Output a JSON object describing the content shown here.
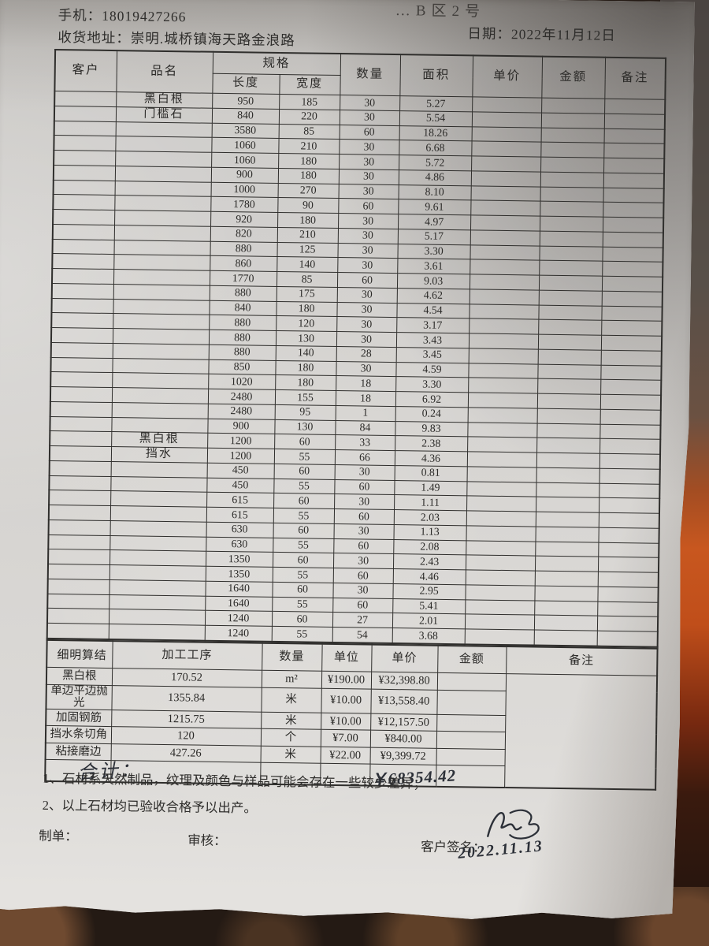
{
  "colors": {
    "backdrop_dark": "#241a14",
    "backdrop_orange": "#c8571f",
    "paper": "#d2d0cd",
    "ink": "#2e2d2b",
    "handwriting": "#2c3038"
  },
  "header": {
    "top_partial": "…B区2号",
    "phone": "手机：18019427266",
    "address": "收货地址：崇明.城桥镇海天路金浪路",
    "date": "日期：2022年11月12日"
  },
  "table": {
    "headers": {
      "customer": "客户",
      "product": "品名",
      "spec": "规格",
      "length": "长度",
      "width": "宽度",
      "qty": "数量",
      "area": "面积",
      "unit_price": "单价",
      "amount": "金额",
      "remark": "备注"
    },
    "product_labels": {
      "0": "黑白根",
      "1": "门槛石",
      "23": "黑白根",
      "24": "挡水"
    },
    "rows": [
      [
        "950",
        "185",
        "30",
        "5.27"
      ],
      [
        "840",
        "220",
        "30",
        "5.54"
      ],
      [
        "3580",
        "85",
        "60",
        "18.26"
      ],
      [
        "1060",
        "210",
        "30",
        "6.68"
      ],
      [
        "1060",
        "180",
        "30",
        "5.72"
      ],
      [
        "900",
        "180",
        "30",
        "4.86"
      ],
      [
        "1000",
        "270",
        "30",
        "8.10"
      ],
      [
        "1780",
        "90",
        "60",
        "9.61"
      ],
      [
        "920",
        "180",
        "30",
        "4.97"
      ],
      [
        "820",
        "210",
        "30",
        "5.17"
      ],
      [
        "880",
        "125",
        "30",
        "3.30"
      ],
      [
        "860",
        "140",
        "30",
        "3.61"
      ],
      [
        "1770",
        "85",
        "60",
        "9.03"
      ],
      [
        "880",
        "175",
        "30",
        "4.62"
      ],
      [
        "840",
        "180",
        "30",
        "4.54"
      ],
      [
        "880",
        "120",
        "30",
        "3.17"
      ],
      [
        "880",
        "130",
        "30",
        "3.43"
      ],
      [
        "880",
        "140",
        "28",
        "3.45"
      ],
      [
        "850",
        "180",
        "30",
        "4.59"
      ],
      [
        "1020",
        "180",
        "18",
        "3.30"
      ],
      [
        "2480",
        "155",
        "18",
        "6.92"
      ],
      [
        "2480",
        "95",
        "1",
        "0.24"
      ],
      [
        "900",
        "130",
        "84",
        "9.83"
      ],
      [
        "1200",
        "60",
        "33",
        "2.38"
      ],
      [
        "1200",
        "55",
        "66",
        "4.36"
      ],
      [
        "450",
        "60",
        "30",
        "0.81"
      ],
      [
        "450",
        "55",
        "60",
        "1.49"
      ],
      [
        "615",
        "60",
        "30",
        "1.11"
      ],
      [
        "615",
        "55",
        "60",
        "2.03"
      ],
      [
        "630",
        "60",
        "30",
        "1.13"
      ],
      [
        "630",
        "55",
        "60",
        "2.08"
      ],
      [
        "1350",
        "60",
        "30",
        "2.43"
      ],
      [
        "1350",
        "55",
        "60",
        "4.46"
      ],
      [
        "1640",
        "60",
        "30",
        "2.95"
      ],
      [
        "1640",
        "55",
        "60",
        "5.41"
      ],
      [
        "1240",
        "60",
        "27",
        "2.01"
      ],
      [
        "1240",
        "55",
        "54",
        "3.68"
      ]
    ]
  },
  "settlement": {
    "label": "结算明细",
    "headers": [
      "加工工序",
      "数量",
      "单位",
      "单价",
      "金额",
      "备注"
    ],
    "rows": [
      [
        "黑白根",
        "170.52",
        "m²",
        "¥190.00",
        "¥32,398.80",
        ""
      ],
      [
        "单边平边抛光",
        "1355.84",
        "米",
        "¥10.00",
        "¥13,558.40",
        ""
      ],
      [
        "加固钢筋",
        "1215.75",
        "米",
        "¥10.00",
        "¥12,157.50",
        ""
      ],
      [
        "挡水条切角",
        "120",
        "个",
        "¥7.00",
        "¥840.00",
        ""
      ],
      [
        "粘接磨边",
        "427.26",
        "米",
        "¥22.00",
        "¥9,399.72",
        ""
      ]
    ],
    "total_label": "合计：",
    "total_value": "￥68354.42"
  },
  "notes": [
    "1、石材系天然制品，纹理及颜色与样品可能会存在一些较少差异；",
    "2、以上石材均已验收合格予以出产。"
  ],
  "footer": {
    "maker": "制单：",
    "auditor": "审核：",
    "customer_sign": "客户签名：",
    "sign_date": "2022.11.13"
  }
}
